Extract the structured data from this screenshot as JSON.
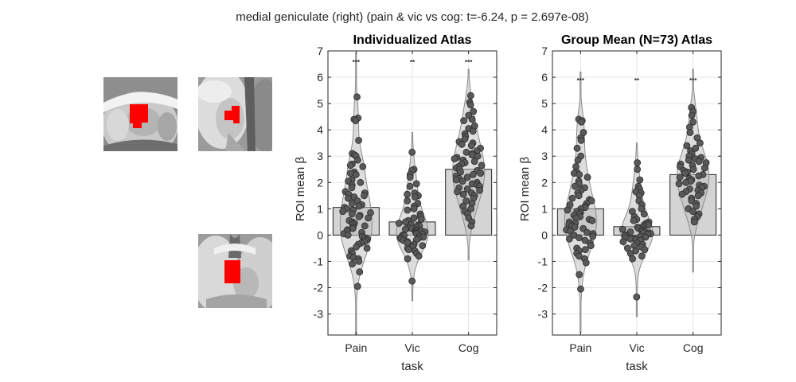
{
  "figure": {
    "suptitle": "medial geniculate (right) (pain & vic vs cog: t=-6.24, p = 2.697e-08)",
    "highlight_color": "#ff0000"
  },
  "chart_data": [
    {
      "type": "bar",
      "title": "Individualized Atlas",
      "xlabel": "task",
      "ylabel": "ROI mean β",
      "ylim": [
        -3.8,
        7
      ],
      "yticks": [
        -3,
        -2,
        -1,
        0,
        1,
        2,
        3,
        4,
        5,
        6,
        7
      ],
      "grid": true,
      "categories": [
        "Pain",
        "Vic",
        "Cog"
      ],
      "values": [
        1.05,
        0.5,
        2.5
      ],
      "significance": [
        "***",
        "**",
        "***"
      ],
      "violin_range": [
        [
          -3.8,
          6.9
        ],
        [
          -2.5,
          3.9
        ],
        [
          -0.95,
          6.3
        ]
      ],
      "points": [
        [
          5.25,
          4.45,
          4.4,
          4.35,
          3.6,
          3.1,
          3.05,
          3.0,
          2.85,
          2.7,
          2.65,
          2.6,
          2.4,
          2.35,
          2.3,
          2.1,
          2.05,
          2.0,
          1.9,
          1.8,
          1.65,
          1.6,
          1.55,
          1.5,
          1.45,
          1.4,
          1.3,
          1.2,
          1.15,
          1.1,
          1.05,
          1.0,
          0.95,
          0.9,
          0.85,
          0.8,
          0.75,
          0.7,
          0.65,
          0.55,
          0.5,
          0.45,
          0.4,
          0.35,
          0.3,
          0.25,
          0.2,
          0.15,
          0.1,
          0.05,
          0.0,
          -0.05,
          -0.1,
          -0.15,
          -0.2,
          -0.25,
          -0.3,
          -0.35,
          -0.45,
          -0.5,
          -0.6,
          -0.7,
          -0.8,
          -0.85,
          -0.9,
          -1.0,
          -1.1,
          -1.4,
          -1.95
        ],
        [
          3.15,
          2.5,
          2.45,
          2.3,
          2.2,
          1.95,
          1.85,
          1.6,
          1.55,
          1.5,
          1.45,
          1.3,
          1.2,
          1.1,
          1.0,
          0.95,
          0.8,
          0.7,
          0.65,
          0.6,
          0.55,
          0.5,
          0.45,
          0.4,
          0.38,
          0.35,
          0.3,
          0.28,
          0.25,
          0.22,
          0.2,
          0.18,
          0.15,
          0.12,
          0.1,
          0.08,
          0.05,
          0.03,
          0.0,
          -0.02,
          -0.05,
          -0.08,
          -0.1,
          -0.12,
          -0.15,
          -0.18,
          -0.2,
          -0.25,
          -0.3,
          -0.35,
          -0.4,
          -0.45,
          -0.5,
          -0.55,
          -0.6,
          -0.7,
          -0.8,
          -0.9,
          -1.75
        ],
        [
          5.3,
          5.05,
          4.95,
          4.7,
          4.55,
          4.4,
          4.35,
          4.15,
          4.05,
          3.95,
          3.85,
          3.75,
          3.65,
          3.55,
          3.5,
          3.45,
          3.4,
          3.3,
          3.2,
          3.15,
          3.1,
          3.05,
          3.0,
          2.95,
          2.9,
          2.85,
          2.8,
          2.75,
          2.7,
          2.65,
          2.6,
          2.55,
          2.5,
          2.45,
          2.4,
          2.35,
          2.3,
          2.25,
          2.2,
          2.15,
          2.1,
          2.05,
          2.0,
          1.95,
          1.9,
          1.85,
          1.8,
          1.75,
          1.7,
          1.65,
          1.6,
          1.55,
          1.5,
          1.4,
          1.3,
          1.2,
          1.1,
          1.0,
          0.9,
          0.8,
          0.65,
          0.5,
          0.35
        ]
      ]
    },
    {
      "type": "bar",
      "title": "Group Mean (N=73) Atlas",
      "xlabel": "task",
      "ylabel": "ROI mean β",
      "ylim": [
        -3.8,
        7
      ],
      "yticks": [
        -3,
        -2,
        -1,
        0,
        1,
        2,
        3,
        4,
        5,
        6,
        7
      ],
      "grid": true,
      "categories": [
        "Pain",
        "Vic",
        "Cog"
      ],
      "values": [
        1.0,
        0.32,
        2.3
      ],
      "significance": [
        "***",
        "**",
        "***"
      ],
      "violin_range": [
        [
          -3.7,
          6.2
        ],
        [
          -3.1,
          3.5
        ],
        [
          -1.4,
          6.3
        ]
      ],
      "points": [
        [
          4.4,
          4.35,
          4.3,
          3.9,
          3.7,
          3.6,
          3.3,
          3.0,
          2.85,
          2.6,
          2.4,
          2.35,
          2.3,
          2.2,
          2.05,
          1.95,
          1.85,
          1.8,
          1.7,
          1.6,
          1.5,
          1.4,
          1.35,
          1.3,
          1.2,
          1.15,
          1.1,
          1.05,
          1.0,
          0.95,
          0.9,
          0.85,
          0.8,
          0.75,
          0.7,
          0.65,
          0.6,
          0.55,
          0.5,
          0.45,
          0.4,
          0.35,
          0.3,
          0.25,
          0.2,
          0.15,
          0.1,
          0.05,
          0.0,
          -0.05,
          -0.1,
          -0.15,
          -0.2,
          -0.3,
          -0.4,
          -0.5,
          -0.55,
          -0.6,
          -0.7,
          -0.8,
          -0.9,
          -1.05,
          -1.5,
          -2.05
        ],
        [
          2.75,
          2.5,
          2.1,
          1.85,
          1.75,
          1.65,
          1.6,
          1.5,
          1.3,
          1.15,
          1.0,
          0.9,
          0.8,
          0.7,
          0.6,
          0.55,
          0.5,
          0.45,
          0.4,
          0.38,
          0.35,
          0.3,
          0.28,
          0.25,
          0.22,
          0.2,
          0.18,
          0.15,
          0.12,
          0.1,
          0.08,
          0.05,
          0.03,
          0.0,
          -0.02,
          -0.05,
          -0.08,
          -0.1,
          -0.12,
          -0.15,
          -0.18,
          -0.2,
          -0.25,
          -0.3,
          -0.35,
          -0.4,
          -0.45,
          -0.5,
          -0.55,
          -0.6,
          -0.7,
          -0.8,
          -0.9,
          -2.35
        ],
        [
          4.85,
          4.7,
          4.55,
          4.3,
          4.1,
          3.9,
          3.7,
          3.5,
          3.4,
          3.3,
          3.2,
          3.1,
          3.0,
          2.95,
          2.9,
          2.85,
          2.8,
          2.75,
          2.7,
          2.65,
          2.6,
          2.55,
          2.5,
          2.45,
          2.4,
          2.35,
          2.3,
          2.25,
          2.2,
          2.15,
          2.1,
          2.05,
          2.0,
          1.95,
          1.9,
          1.85,
          1.8,
          1.75,
          1.7,
          1.65,
          1.6,
          1.55,
          1.5,
          1.4,
          1.3,
          1.2,
          1.1,
          1.0,
          0.9,
          0.8,
          0.7,
          0.6,
          0.5
        ]
      ]
    }
  ]
}
